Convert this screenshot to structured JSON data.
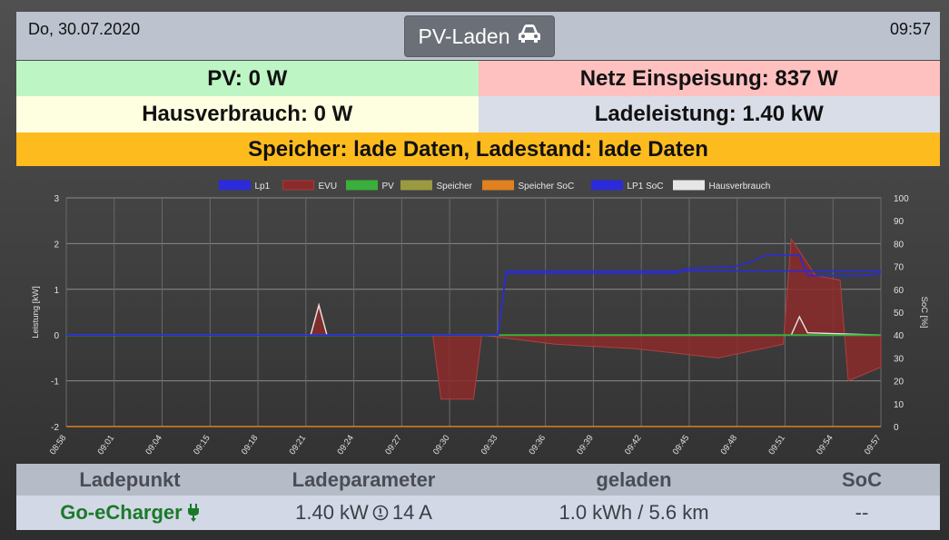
{
  "header": {
    "date": "Do, 30.07.2020",
    "time": "09:57",
    "mode_label": "PV-Laden",
    "mode_icon": "car-icon"
  },
  "status": {
    "pv": "PV: 0 W",
    "grid": "Netz Einspeisung: 837 W",
    "house": "Hausverbrauch: 0 W",
    "charge_power": "Ladeleistung: 1.40 kW",
    "storage": "Speicher: lade Daten, Ladestand: lade Daten"
  },
  "colors": {
    "pv_bg": "#bdf5c5",
    "grid_bg": "#ffc0c0",
    "house_bg": "#fefee0",
    "charge_bg": "#d8dde8",
    "storage_bg": "#fdbb1e"
  },
  "chart_data": {
    "type": "line",
    "legend": [
      "Lp1",
      "EVU",
      "PV",
      "Speicher",
      "Speicher SoC",
      "LP1 SoC",
      "Hausverbrauch"
    ],
    "series_colors": [
      "#2b2bdb",
      "#a33a3a",
      "#3aaf3a",
      "#9a9a40",
      "#e08020",
      "#2b2bdb",
      "#e6e6e6"
    ],
    "ylabel": "Leistung [kW]",
    "y2label": "SoC [%]",
    "ylim": [
      -2,
      3
    ],
    "y2lim": [
      0,
      100
    ],
    "y_ticks": [
      "3",
      "2",
      "1",
      "0",
      "-1",
      "-2"
    ],
    "y2_ticks": [
      "100",
      "90",
      "80",
      "70",
      "60",
      "50",
      "40",
      "30",
      "20",
      "10",
      "0"
    ],
    "x_ticks": [
      "08:58",
      "09:01",
      "09:04",
      "09:15",
      "09:18",
      "09:21",
      "09:24",
      "09:27",
      "09:30",
      "09:33",
      "09:36",
      "09:39",
      "09:42",
      "09:45",
      "09:48",
      "09:51",
      "09:54",
      "09:57"
    ],
    "lp1_kw": [
      [
        0,
        0
      ],
      [
        53,
        0
      ],
      [
        54,
        1.4
      ],
      [
        100,
        1.4
      ]
    ],
    "lp1_soc": [
      [
        0,
        40
      ],
      [
        53,
        40
      ],
      [
        54,
        67
      ],
      [
        75,
        67
      ],
      [
        76,
        69
      ],
      [
        82,
        70
      ],
      [
        84,
        72
      ],
      [
        86,
        75
      ],
      [
        90,
        75
      ],
      [
        91,
        66
      ],
      [
        98,
        66
      ],
      [
        100,
        67
      ]
    ],
    "evu_kw": [
      [
        0,
        0
      ],
      [
        30,
        0
      ],
      [
        31,
        0.7
      ],
      [
        32,
        0
      ],
      [
        45,
        0
      ],
      [
        46,
        -1.4
      ],
      [
        50,
        -1.4
      ],
      [
        51,
        0
      ],
      [
        60,
        -0.2
      ],
      [
        70,
        -0.3
      ],
      [
        80,
        -0.5
      ],
      [
        88,
        -0.2
      ],
      [
        89,
        2.1
      ],
      [
        92,
        1.3
      ],
      [
        95,
        1.2
      ],
      [
        96,
        -1.0
      ],
      [
        100,
        -0.7
      ]
    ],
    "pv_kw": [
      [
        0,
        0
      ],
      [
        100,
        0
      ]
    ],
    "house_kw": [
      [
        0,
        0
      ],
      [
        30,
        0
      ],
      [
        31,
        0.65
      ],
      [
        32,
        0
      ],
      [
        89,
        0
      ],
      [
        90,
        0.4
      ],
      [
        91,
        0.05
      ],
      [
        100,
        0
      ]
    ],
    "speicher_soc": [
      [
        0,
        0
      ],
      [
        100,
        0
      ]
    ]
  },
  "table": {
    "headers": [
      "Ladepunkt",
      "Ladeparameter",
      "geladen",
      "SoC"
    ],
    "row": {
      "name": "Go-eCharger",
      "name_icon": "plug-icon",
      "params_kw": "1.40 kW",
      "params_icon": "info-clock-icon",
      "params_a": "14 A",
      "charged": "1.0 kWh / 5.6 km",
      "soc": "--"
    }
  }
}
